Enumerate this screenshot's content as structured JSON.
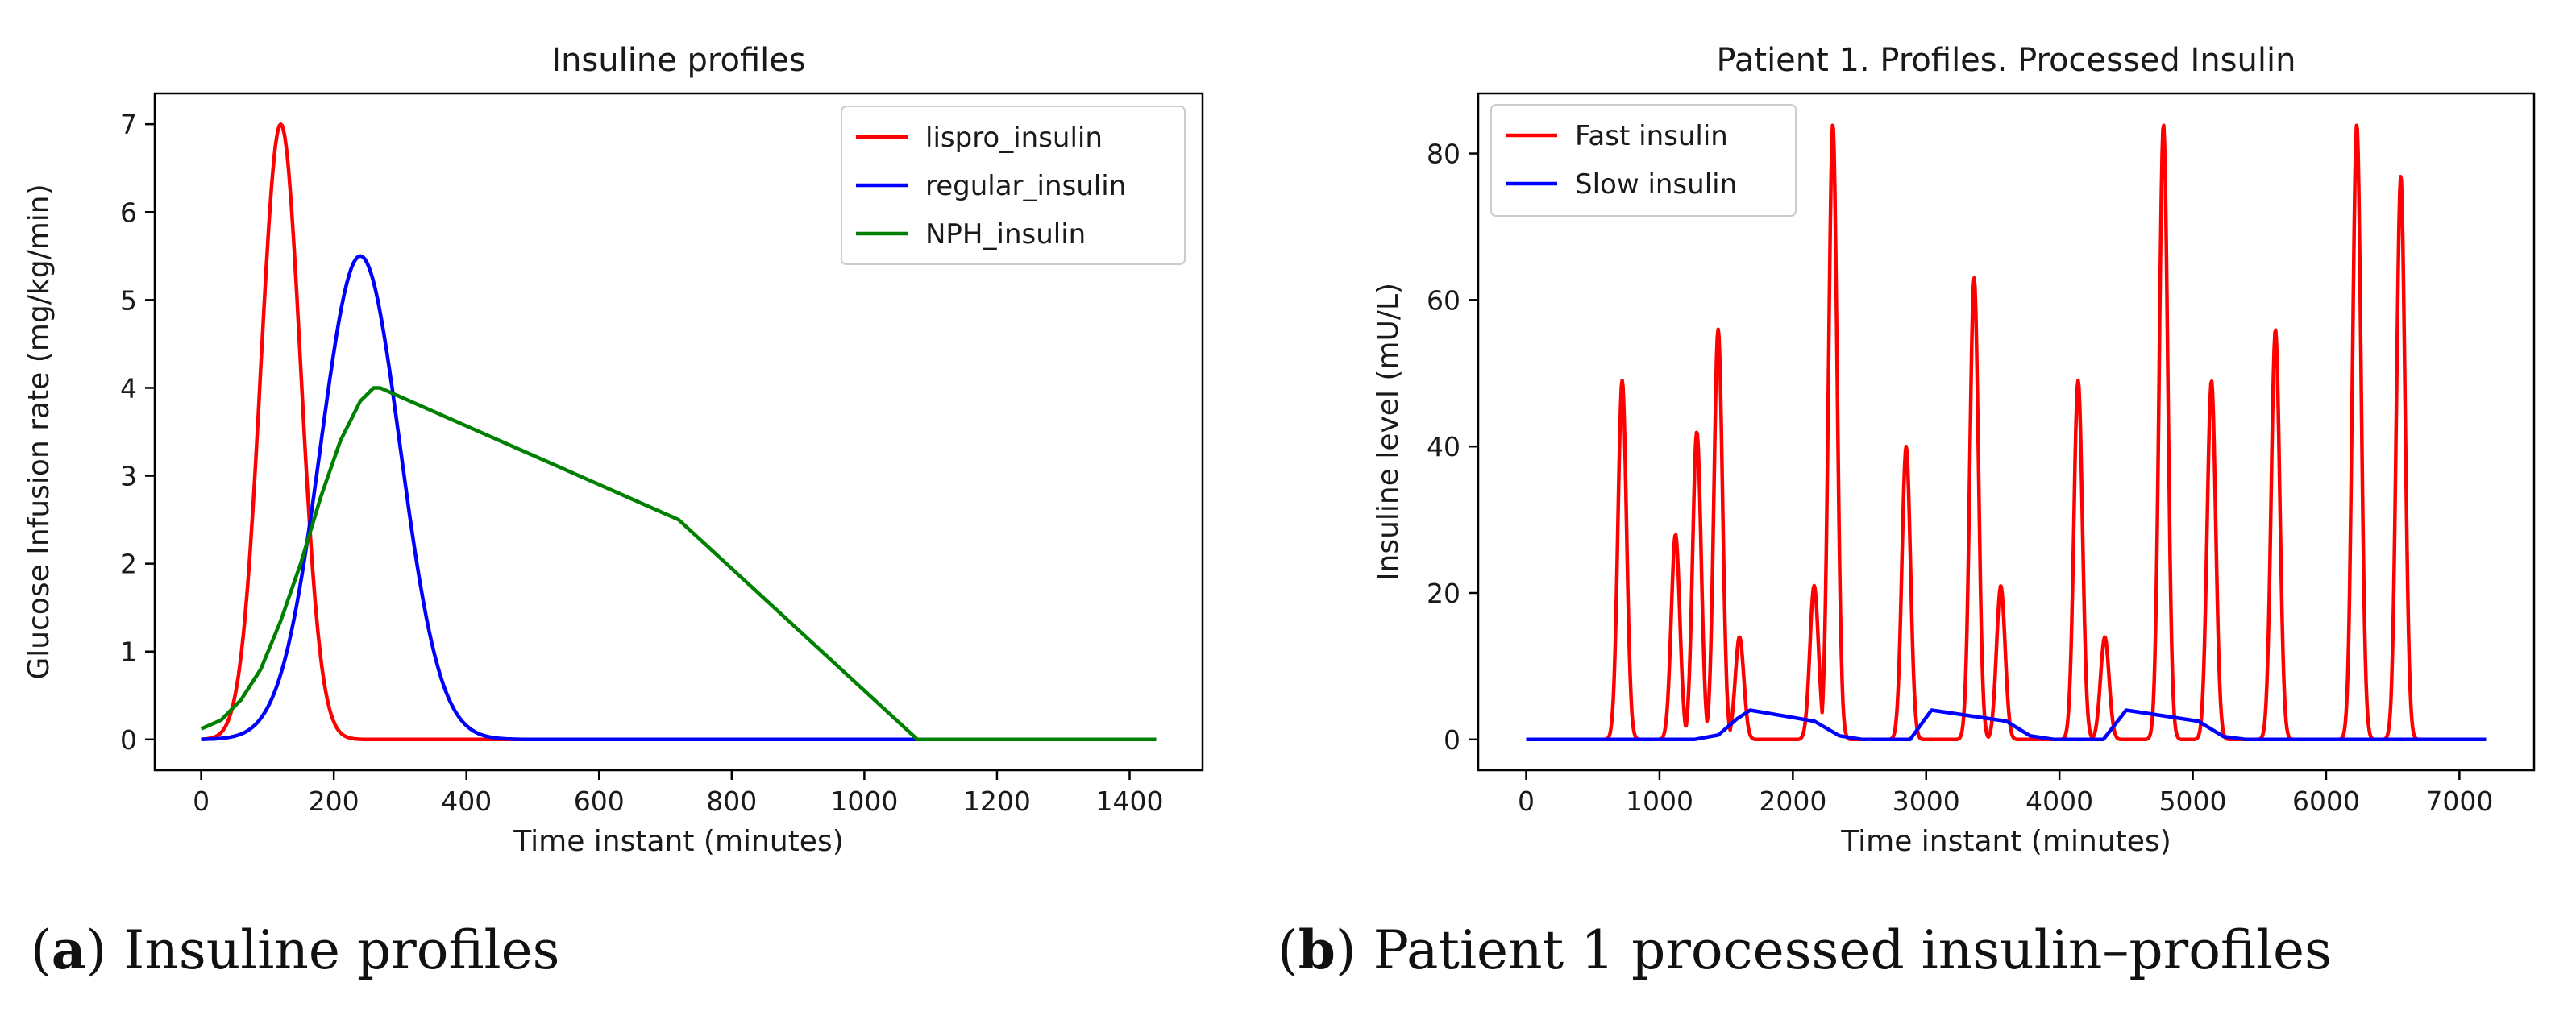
{
  "colors": {
    "red": "#ff0000",
    "blue": "#0000ff",
    "green": "#008000"
  },
  "captions": [
    {
      "label": "a",
      "text": " Insuline profiles"
    },
    {
      "label": "b",
      "text": " Patient 1 processed insulin–profiles"
    }
  ],
  "chart_data": [
    {
      "type": "line",
      "title": "Insuline profiles",
      "xlabel": "Time instant (minutes)",
      "ylabel": "Glucose Infusion rate (mg/kg/min)",
      "xlim": [
        -70,
        1510
      ],
      "ylim": [
        -0.35,
        7.35
      ],
      "xticks": [
        0,
        200,
        400,
        600,
        800,
        1000,
        1200,
        1400
      ],
      "yticks": [
        0,
        1,
        2,
        3,
        4,
        5,
        6,
        7
      ],
      "legend": "top-right",
      "series": [
        {
          "name": "lispro_insulin",
          "color": "#ff0000",
          "kind": "gauss",
          "peak_x": 120,
          "peak_y": 7.0,
          "sigma": 30,
          "x_range": [
            0,
            1440
          ]
        },
        {
          "name": "regular_insulin",
          "color": "#0000ff",
          "kind": "gauss",
          "peak_x": 240,
          "peak_y": 5.5,
          "sigma": 60,
          "x_range": [
            0,
            1440
          ]
        },
        {
          "name": "NPH_insulin",
          "color": "#008000",
          "kind": "points",
          "x": [
            0,
            30,
            60,
            90,
            120,
            150,
            180,
            210,
            240,
            260,
            270,
            720,
            1080,
            1440
          ],
          "y": [
            0.12,
            0.22,
            0.45,
            0.8,
            1.35,
            2.0,
            2.75,
            3.4,
            3.85,
            4.0,
            4.0,
            2.5,
            0.0,
            0.0
          ]
        }
      ]
    },
    {
      "type": "line",
      "title": "Patient 1. Profiles. Processed Insulin",
      "xlabel": "Time instant (minutes)",
      "ylabel": "Insuline level (mU/L)",
      "xlim": [
        -360,
        7560
      ],
      "ylim": [
        -4.2,
        88.2
      ],
      "xticks": [
        0,
        1000,
        2000,
        3000,
        4000,
        5000,
        6000,
        7000
      ],
      "yticks": [
        0,
        20,
        40,
        60,
        80
      ],
      "legend": "top-left",
      "series": [
        {
          "name": "Fast insulin",
          "color": "#ff0000",
          "kind": "peaks",
          "x_range": [
            0,
            7200
          ],
          "sigma": 32,
          "peaks": [
            [
              720,
              49
            ],
            [
              1120,
              28
            ],
            [
              1280,
              42
            ],
            [
              1440,
              56
            ],
            [
              1600,
              14
            ],
            [
              2160,
              21
            ],
            [
              2300,
              84
            ],
            [
              2850,
              40
            ],
            [
              3360,
              63
            ],
            [
              3560,
              21
            ],
            [
              4140,
              49
            ],
            [
              4340,
              14
            ],
            [
              4780,
              84
            ],
            [
              5140,
              49
            ],
            [
              5620,
              56
            ],
            [
              6230,
              84
            ],
            [
              6560,
              77
            ]
          ]
        },
        {
          "name": "Slow insulin",
          "color": "#0000ff",
          "kind": "points",
          "x": [
            0,
            1260,
            1440,
            1580,
            1680,
            2160,
            2350,
            2520,
            2880,
            3040,
            3600,
            3780,
            3960,
            4330,
            4500,
            5040,
            5230,
            5400,
            7200
          ],
          "y": [
            0,
            0,
            0.6,
            2.8,
            4.0,
            2.5,
            0.5,
            0,
            0,
            4.0,
            2.5,
            0.5,
            0,
            0,
            4.0,
            2.5,
            0.4,
            0,
            0
          ]
        }
      ]
    }
  ]
}
